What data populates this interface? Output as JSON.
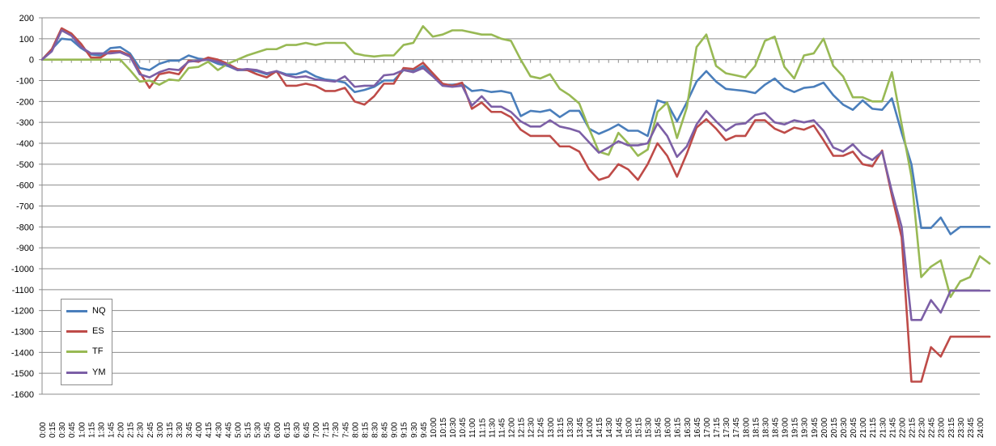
{
  "chart_data": {
    "type": "line",
    "title": "",
    "xlabel": "",
    "ylabel": "",
    "ylim": [
      -1600,
      200
    ],
    "y_ticks": [
      200,
      100,
      0,
      -100,
      -200,
      -300,
      -400,
      -500,
      -600,
      -700,
      -800,
      -900,
      -1000,
      -1100,
      -1200,
      -1300,
      -1400,
      -1500,
      -1600
    ],
    "x_tick_labels": [
      "0:00",
      "0:15",
      "0:30",
      "0:45",
      "1:00",
      "1:15",
      "1:30",
      "1:45",
      "2:00",
      "2:15",
      "2:30",
      "2:45",
      "3:00",
      "3:15",
      "3:30",
      "3:45",
      "4:00",
      "4:15",
      "4:30",
      "4:45",
      "5:00",
      "5:15",
      "5:30",
      "5:45",
      "6:00",
      "6:15",
      "6:30",
      "6:45",
      "7:00",
      "7:15",
      "7:30",
      "7:45",
      "8:00",
      "8:15",
      "8:30",
      "8:45",
      "9:00",
      "9:15",
      "9:30",
      "9:45",
      "10:00",
      "10:15",
      "10:30",
      "10:45",
      "11:00",
      "11:15",
      "11:30",
      "11:45",
      "12:00",
      "12:15",
      "12:30",
      "12:45",
      "13:00",
      "13:15",
      "13:30",
      "13:45",
      "14:00",
      "14:15",
      "14:30",
      "14:45",
      "15:00",
      "15:15",
      "15:30",
      "15:45",
      "16:00",
      "16:15",
      "16:30",
      "16:45",
      "17:00",
      "17:15",
      "17:30",
      "17:45",
      "18:00",
      "18:15",
      "18:30",
      "18:45",
      "19:00",
      "19:15",
      "19:30",
      "19:45",
      "20:00",
      "20:15",
      "20:30",
      "20:45",
      "21:00",
      "21:15",
      "21:30",
      "21:45",
      "22:00",
      "22:15",
      "22:30",
      "22:45",
      "23:00",
      "23:15",
      "23:30",
      "23:45",
      "24:00"
    ],
    "grid": "horizontal",
    "legend_position": "bottom-left",
    "series": [
      {
        "name": "NQ",
        "color": "#4a7ebb",
        "values": [
          0,
          50,
          100,
          95,
          55,
          25,
          20,
          55,
          60,
          30,
          -40,
          -50,
          -20,
          -5,
          -5,
          20,
          5,
          0,
          -20,
          -30,
          -50,
          -50,
          -55,
          -70,
          -55,
          -70,
          -70,
          -55,
          -80,
          -95,
          -100,
          -110,
          -155,
          -145,
          -130,
          -100,
          -100,
          -50,
          -55,
          -30,
          -70,
          -120,
          -120,
          -115,
          -150,
          -145,
          -155,
          -150,
          -160,
          -270,
          -245,
          -250,
          -240,
          -275,
          -245,
          -245,
          -330,
          -355,
          -335,
          -310,
          -340,
          -340,
          -365,
          -195,
          -210,
          -295,
          -205,
          -105,
          -55,
          -105,
          -140,
          -145,
          -150,
          -160,
          -120,
          -90,
          -135,
          -155,
          -135,
          -130,
          -110,
          -170,
          -215,
          -240,
          -195,
          -235,
          -240,
          -185,
          -350,
          -500,
          -805,
          -805,
          -755,
          -835,
          -800,
          -800,
          -800,
          -800
        ]
      },
      {
        "name": "ES",
        "color": "#be4b48",
        "values": [
          0,
          50,
          150,
          125,
          75,
          10,
          10,
          40,
          40,
          20,
          -60,
          -135,
          -70,
          -60,
          -70,
          -5,
          -10,
          10,
          0,
          -20,
          -45,
          -50,
          -70,
          -85,
          -55,
          -125,
          -125,
          -115,
          -125,
          -150,
          -150,
          -135,
          -200,
          -215,
          -175,
          -115,
          -115,
          -40,
          -45,
          -15,
          -65,
          -115,
          -125,
          -110,
          -235,
          -205,
          -250,
          -250,
          -275,
          -335,
          -365,
          -365,
          -365,
          -415,
          -415,
          -440,
          -525,
          -575,
          -560,
          -500,
          -525,
          -575,
          -500,
          -400,
          -460,
          -560,
          -450,
          -325,
          -285,
          -330,
          -385,
          -365,
          -365,
          -290,
          -290,
          -330,
          -350,
          -325,
          -335,
          -315,
          -385,
          -460,
          -460,
          -440,
          -500,
          -510,
          -435,
          -650,
          -850,
          -1540,
          -1540,
          -1375,
          -1420,
          -1325,
          -1325,
          -1325,
          -1325,
          -1325
        ]
      },
      {
        "name": "TF",
        "color": "#98b954",
        "values": [
          0,
          0,
          0,
          0,
          0,
          0,
          0,
          0,
          0,
          -50,
          -105,
          -100,
          -120,
          -95,
          -100,
          -40,
          -35,
          -10,
          -50,
          -20,
          0,
          20,
          35,
          50,
          50,
          70,
          70,
          80,
          70,
          80,
          80,
          80,
          30,
          20,
          15,
          20,
          20,
          70,
          80,
          160,
          110,
          120,
          140,
          140,
          130,
          120,
          120,
          100,
          90,
          0,
          -80,
          -90,
          -70,
          -140,
          -170,
          -210,
          -330,
          -440,
          -455,
          -350,
          -400,
          -460,
          -430,
          -250,
          -205,
          -375,
          -230,
          60,
          120,
          -30,
          -65,
          -75,
          -85,
          -30,
          90,
          110,
          -35,
          -90,
          20,
          30,
          100,
          -30,
          -80,
          -180,
          -180,
          -200,
          -200,
          -60,
          -310,
          -560,
          -1040,
          -990,
          -960,
          -1135,
          -1060,
          -1040,
          -940,
          -975
        ]
      },
      {
        "name": "YM",
        "color": "#7c5fa6",
        "values": [
          0,
          40,
          140,
          115,
          60,
          30,
          30,
          30,
          35,
          15,
          -70,
          -85,
          -60,
          -45,
          -50,
          -10,
          -5,
          0,
          -10,
          -25,
          -50,
          -45,
          -50,
          -65,
          -55,
          -75,
          -85,
          -80,
          -95,
          -100,
          -105,
          -80,
          -130,
          -125,
          -125,
          -75,
          -70,
          -50,
          -60,
          -40,
          -80,
          -125,
          -130,
          -125,
          -220,
          -175,
          -225,
          -225,
          -250,
          -295,
          -320,
          -320,
          -290,
          -320,
          -330,
          -345,
          -395,
          -445,
          -420,
          -390,
          -410,
          -410,
          -400,
          -305,
          -365,
          -465,
          -415,
          -310,
          -245,
          -295,
          -340,
          -310,
          -305,
          -265,
          -255,
          -300,
          -310,
          -290,
          -300,
          -290,
          -340,
          -420,
          -440,
          -405,
          -455,
          -480,
          -440,
          -630,
          -800,
          -1245,
          -1245,
          -1150,
          -1210,
          -1105,
          -1105,
          -1105,
          -1105,
          -1105
        ]
      }
    ]
  }
}
